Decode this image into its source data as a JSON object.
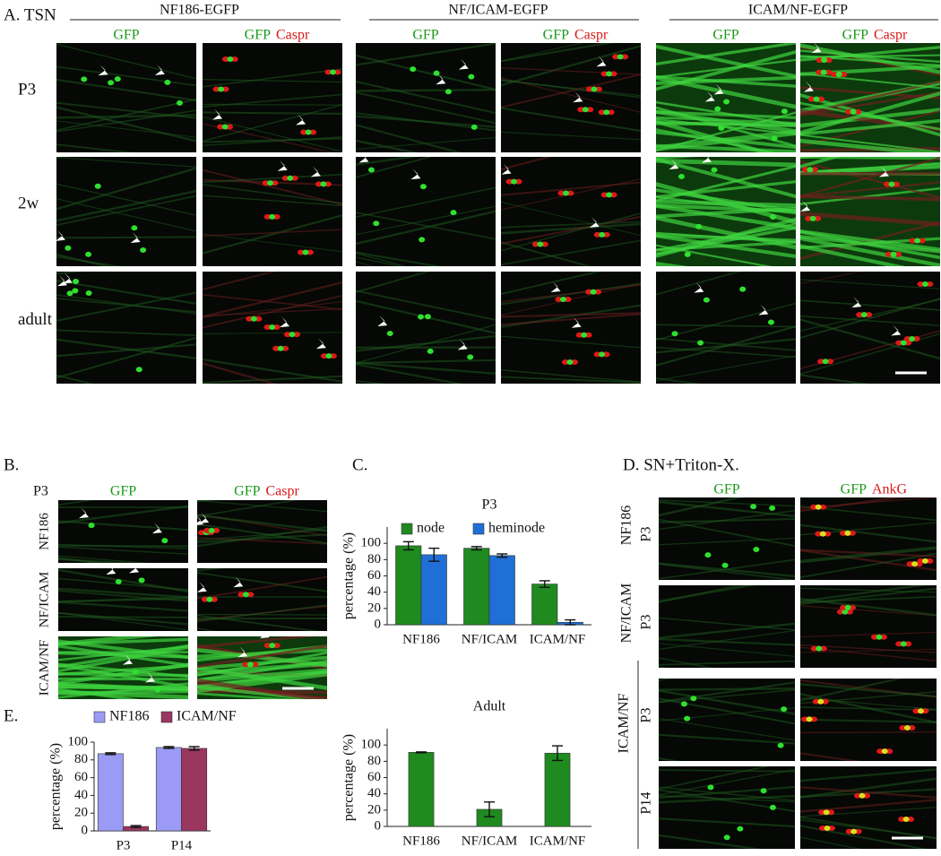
{
  "panel_a": {
    "label": "A. TSN",
    "groups": [
      "NF186-EGFP",
      "NF/ICAM-EGFP",
      "ICAM/NF-EGFP"
    ],
    "rows": [
      "P3",
      "2w",
      "adult"
    ]
  },
  "panel_b": {
    "label": "B.",
    "age": "P3",
    "rows": [
      "NF186",
      "NF/ICAM",
      "ICAM/NF"
    ]
  },
  "panel_c": {
    "label": "C."
  },
  "panel_d": {
    "label": "D. SN+Triton-X.",
    "group": "ICAM/NF",
    "rows": [
      {
        "construct": "NF186",
        "age": "P3"
      },
      {
        "construct": "NF/ICAM",
        "age": "P3"
      },
      {
        "age": "P3"
      },
      {
        "age": "P14"
      }
    ]
  },
  "panel_e": {
    "label": "E."
  },
  "channels": {
    "gfp": "GFP",
    "caspr": "Caspr",
    "ankg": "AnkG"
  },
  "chart_data": [
    {
      "type": "bar",
      "title": "P3",
      "ylabel": "percentage (%)",
      "categories": [
        "NF186",
        "NF/ICAM",
        "ICAM/NF"
      ],
      "series": [
        {
          "name": "node",
          "color": "#1f8a1f",
          "values": [
            97,
            94,
            50
          ],
          "errors": [
            5,
            2,
            4
          ]
        },
        {
          "name": "heminode",
          "color": "#1f6fd6",
          "values": [
            86,
            85,
            3
          ],
          "errors": [
            8,
            2,
            3
          ]
        }
      ],
      "ylim": [
        0,
        120
      ],
      "yticks": [
        0,
        20,
        40,
        60,
        80,
        100
      ]
    },
    {
      "type": "bar",
      "title": "Adult",
      "ylabel": "percentage (%)",
      "categories": [
        "NF186",
        "NF/ICAM",
        "ICAM/NF"
      ],
      "series": [
        {
          "color": "#1f8a1f",
          "values": [
            91,
            21,
            90
          ],
          "errors": [
            0.5,
            9,
            9
          ]
        }
      ],
      "ylim": [
        0,
        120
      ],
      "yticks": [
        0,
        20,
        40,
        60,
        80,
        100
      ]
    },
    {
      "type": "bar",
      "ylabel": "percentage (%)",
      "categories": [
        "P3",
        "P14"
      ],
      "series": [
        {
          "name": "NF186",
          "color": "#9b9bf5",
          "values": [
            87,
            94
          ],
          "errors": [
            1,
            1
          ]
        },
        {
          "name": "ICAM/NF",
          "color": "#9a3660",
          "values": [
            5,
            93
          ],
          "errors": [
            1,
            2
          ]
        }
      ],
      "ylim": [
        0,
        100
      ],
      "yticks": [
        0,
        20,
        40,
        60,
        80,
        100
      ]
    }
  ]
}
